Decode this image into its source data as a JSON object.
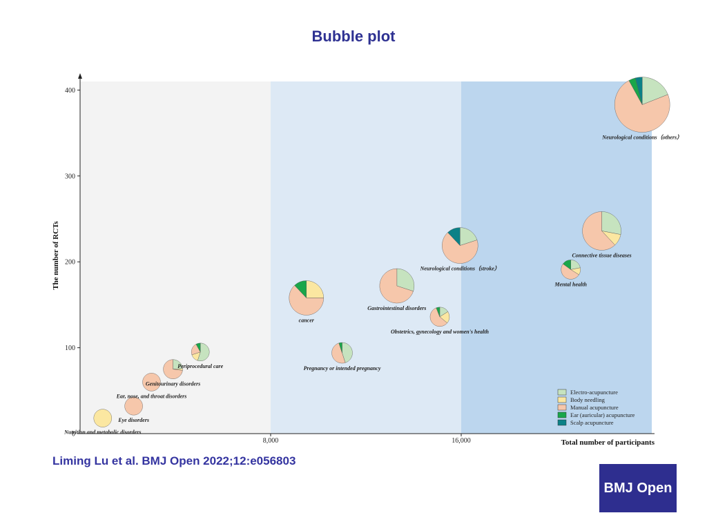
{
  "title": "Bubble plot",
  "citation": "Liming Lu et al. BMJ Open 2022;12:e056803",
  "logo_text": "BMJ Open",
  "colors": {
    "Electro-acupuncture": "#c6e3bf",
    "Body needling": "#fbe7a1",
    "Manual acupuncture": "#f6c7ab",
    "Ear (auricular) acupuncture": "#1aa64a",
    "Scalp acupuncture": "#0b8187"
  },
  "chart_data": {
    "type": "scatter",
    "subtype": "bubble-pie",
    "xlabel": "Total number of participants",
    "ylabel": "The number of RCTs",
    "xlim": [
      0,
      24000
    ],
    "ylim": [
      0,
      410
    ],
    "x_ticks": [
      {
        "value": 8000,
        "label": "8,000"
      },
      {
        "value": 16000,
        "label": "16,000"
      }
    ],
    "y_ticks": [
      {
        "value": 0,
        "label": "0"
      },
      {
        "value": 100,
        "label": "100"
      },
      {
        "value": 200,
        "label": "200"
      },
      {
        "value": 300,
        "label": "300"
      },
      {
        "value": 400,
        "label": "400"
      }
    ],
    "background_bands": [
      {
        "from": 0,
        "to": 8000,
        "color": "#f3f3f3"
      },
      {
        "from": 8000,
        "to": 16000,
        "color": "#dde9f5"
      },
      {
        "from": 16000,
        "to": 24000,
        "color": "#bcd6ee"
      }
    ],
    "legend": {
      "position": "bottom-right",
      "entries": [
        "Electro-acupuncture",
        "Body needling",
        "Manual acupuncture",
        "Ear (auricular) acupuncture",
        "Scalp acupuncture"
      ]
    },
    "points": [
      {
        "label": "Nutrition and metabolic disorders",
        "x": 950,
        "y": 18,
        "size": 13,
        "slices": [
          0,
          1,
          0,
          0,
          0
        ]
      },
      {
        "label": "Eye disorders",
        "x": 2250,
        "y": 32,
        "size": 13,
        "slices": [
          0,
          0,
          1,
          0,
          0
        ]
      },
      {
        "label": "Ear, nose, and throat disorders",
        "x": 3000,
        "y": 60,
        "size": 13,
        "slices": [
          0,
          0,
          1,
          0,
          0
        ]
      },
      {
        "label": "Genitourinary disorders",
        "x": 3900,
        "y": 75,
        "size": 14,
        "slices": [
          0.24,
          0.03,
          0.73,
          0,
          0
        ]
      },
      {
        "label": "Periprocedural care",
        "x": 5050,
        "y": 95,
        "size": 13,
        "slices": [
          0.55,
          0.15,
          0.22,
          0.08,
          0
        ]
      },
      {
        "label": "cancer",
        "x": 9500,
        "y": 158,
        "size": 25,
        "slices": [
          0,
          0.25,
          0.63,
          0.12,
          0
        ]
      },
      {
        "label": "Pregnancy or intended pregnancy",
        "x": 11000,
        "y": 94,
        "size": 15,
        "slices": [
          0.45,
          0,
          0.5,
          0.05,
          0
        ]
      },
      {
        "label": "Gastrointestinal disorders",
        "x": 13300,
        "y": 172,
        "size": 25,
        "slices": [
          0.3,
          0,
          0.7,
          0,
          0
        ]
      },
      {
        "label": "Obstetrics, gynecology and women's health",
        "x": 15100,
        "y": 136,
        "size": 14,
        "slices": [
          0.16,
          0.2,
          0.58,
          0.06,
          0
        ]
      },
      {
        "label": "Neurological conditions（stroke）",
        "x": 15950,
        "y": 219,
        "size": 26,
        "slices": [
          0.2,
          0,
          0.68,
          0,
          0.12
        ]
      },
      {
        "label": "Mental health",
        "x": 20600,
        "y": 191,
        "size": 14,
        "slices": [
          0.22,
          0.12,
          0.51,
          0.15,
          0
        ]
      },
      {
        "label": "Connective tissue diseases",
        "x": 21900,
        "y": 236,
        "size": 28,
        "slices": [
          0.28,
          0.1,
          0.62,
          0,
          0
        ]
      },
      {
        "label": "Neurological conditions（others）",
        "x": 23600,
        "y": 383,
        "size": 40,
        "slices": [
          0.19,
          0,
          0.73,
          0.04,
          0.04
        ]
      }
    ]
  }
}
